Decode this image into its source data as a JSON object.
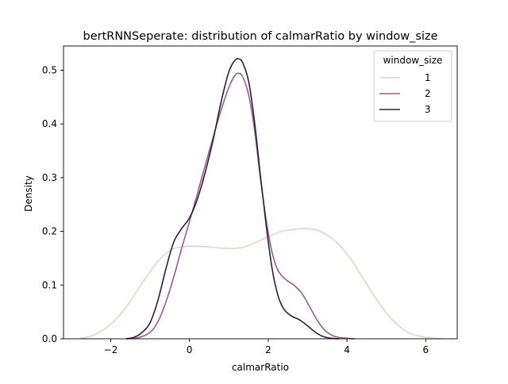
{
  "chart_data": {
    "type": "line",
    "title": "bertRNNSeperate: distribution of calmarRatio by window_size",
    "xlabel": "calmarRatio",
    "ylabel": "Density",
    "xlim": [
      -3.2,
      6.8
    ],
    "ylim": [
      0,
      0.545
    ],
    "xticks": [
      -2,
      0,
      2,
      4,
      6
    ],
    "yticks": [
      0.0,
      0.1,
      0.2,
      0.3,
      0.4,
      0.5
    ],
    "xtick_labels": [
      "−2",
      "0",
      "2",
      "4",
      "6"
    ],
    "ytick_labels": [
      "0.0",
      "0.1",
      "0.2",
      "0.3",
      "0.4",
      "0.5"
    ],
    "grid": false,
    "legend": {
      "title": "window_size",
      "placement": "upper right"
    },
    "series": [
      {
        "name": "1",
        "color": "#ebcfcb",
        "points": [
          [
            -2.75,
            0.001
          ],
          [
            -2.5,
            0.005
          ],
          [
            -2.2,
            0.016
          ],
          [
            -1.9,
            0.034
          ],
          [
            -1.6,
            0.06
          ],
          [
            -1.3,
            0.093
          ],
          [
            -1.0,
            0.125
          ],
          [
            -0.7,
            0.152
          ],
          [
            -0.4,
            0.168
          ],
          [
            -0.1,
            0.172
          ],
          [
            0.2,
            0.172
          ],
          [
            0.5,
            0.171
          ],
          [
            0.8,
            0.169
          ],
          [
            1.1,
            0.168
          ],
          [
            1.4,
            0.171
          ],
          [
            1.7,
            0.18
          ],
          [
            2.0,
            0.19
          ],
          [
            2.3,
            0.199
          ],
          [
            2.6,
            0.203
          ],
          [
            2.9,
            0.205
          ],
          [
            3.2,
            0.203
          ],
          [
            3.5,
            0.193
          ],
          [
            3.8,
            0.175
          ],
          [
            4.1,
            0.148
          ],
          [
            4.4,
            0.114
          ],
          [
            4.7,
            0.079
          ],
          [
            5.0,
            0.048
          ],
          [
            5.3,
            0.025
          ],
          [
            5.6,
            0.01
          ],
          [
            5.9,
            0.004
          ],
          [
            6.2,
            0.001
          ],
          [
            6.4,
            0.0
          ]
        ]
      },
      {
        "name": "2",
        "color": "#a0598a",
        "points": [
          [
            -1.6,
            0.0
          ],
          [
            -1.3,
            0.002
          ],
          [
            -1.0,
            0.012
          ],
          [
            -0.8,
            0.032
          ],
          [
            -0.6,
            0.068
          ],
          [
            -0.4,
            0.115
          ],
          [
            -0.2,
            0.168
          ],
          [
            0.0,
            0.218
          ],
          [
            0.2,
            0.27
          ],
          [
            0.4,
            0.323
          ],
          [
            0.6,
            0.375
          ],
          [
            0.8,
            0.425
          ],
          [
            1.0,
            0.468
          ],
          [
            1.15,
            0.49
          ],
          [
            1.25,
            0.494
          ],
          [
            1.35,
            0.488
          ],
          [
            1.5,
            0.455
          ],
          [
            1.65,
            0.39
          ],
          [
            1.8,
            0.3
          ],
          [
            1.95,
            0.22
          ],
          [
            2.1,
            0.16
          ],
          [
            2.25,
            0.127
          ],
          [
            2.45,
            0.11
          ],
          [
            2.65,
            0.1
          ],
          [
            2.85,
            0.085
          ],
          [
            3.05,
            0.06
          ],
          [
            3.25,
            0.034
          ],
          [
            3.45,
            0.015
          ],
          [
            3.7,
            0.004
          ],
          [
            4.0,
            0.001
          ],
          [
            4.2,
            0.0
          ]
        ]
      },
      {
        "name": "3",
        "color": "#2d1e3e",
        "points": [
          [
            -1.6,
            0.0
          ],
          [
            -1.4,
            0.003
          ],
          [
            -1.2,
            0.012
          ],
          [
            -1.0,
            0.03
          ],
          [
            -0.8,
            0.072
          ],
          [
            -0.6,
            0.13
          ],
          [
            -0.4,
            0.18
          ],
          [
            -0.2,
            0.205
          ],
          [
            0.0,
            0.225
          ],
          [
            0.2,
            0.26
          ],
          [
            0.4,
            0.31
          ],
          [
            0.6,
            0.37
          ],
          [
            0.8,
            0.44
          ],
          [
            1.0,
            0.497
          ],
          [
            1.15,
            0.518
          ],
          [
            1.25,
            0.521
          ],
          [
            1.35,
            0.514
          ],
          [
            1.5,
            0.48
          ],
          [
            1.65,
            0.405
          ],
          [
            1.8,
            0.305
          ],
          [
            1.95,
            0.21
          ],
          [
            2.1,
            0.13
          ],
          [
            2.25,
            0.08
          ],
          [
            2.4,
            0.055
          ],
          [
            2.6,
            0.042
          ],
          [
            2.8,
            0.035
          ],
          [
            3.0,
            0.024
          ],
          [
            3.2,
            0.012
          ],
          [
            3.4,
            0.004
          ],
          [
            3.6,
            0.001
          ],
          [
            3.8,
            0.0
          ]
        ]
      }
    ]
  }
}
